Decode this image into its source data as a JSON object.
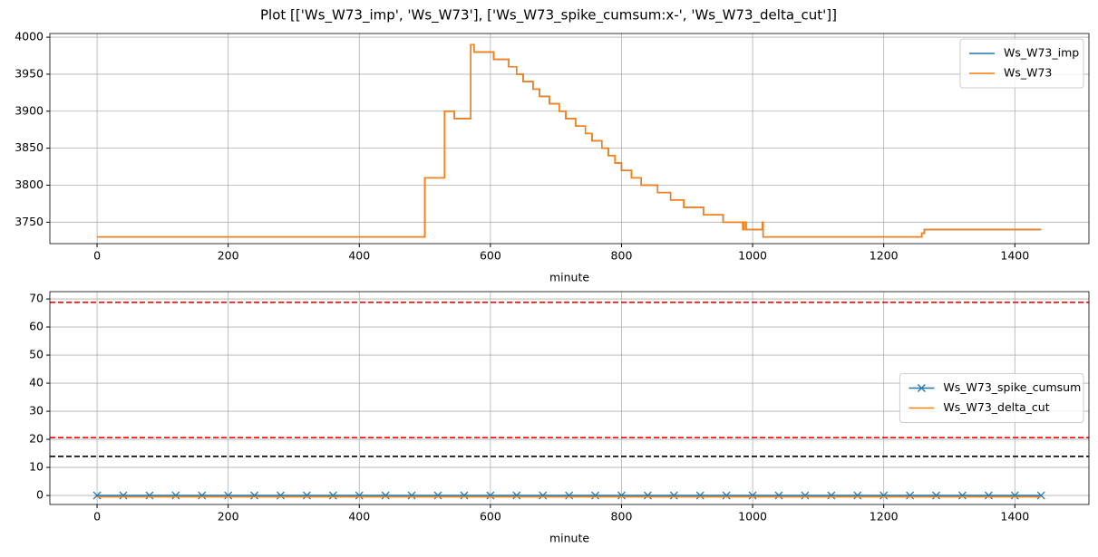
{
  "title": "Plot [['Ws_W73_imp', 'Ws_W73'], ['Ws_W73_spike_cumsum:x-', 'Ws_W73_delta_cut']]",
  "chart_data": [
    {
      "type": "line",
      "xlabel": "minute",
      "xlim": [
        -72,
        1513
      ],
      "ylim": [
        3721,
        4005
      ],
      "xticks": [
        0,
        200,
        400,
        600,
        800,
        1000,
        1200,
        1400
      ],
      "yticks": [
        3750,
        3800,
        3850,
        3900,
        3950,
        4000
      ],
      "grid": true,
      "legend": "upper right",
      "drawstyle": "steps-post",
      "series": [
        {
          "name": "Ws_W73_imp",
          "color": "#1f77b4",
          "x": [
            0,
            500,
            530,
            545,
            570,
            575,
            605,
            628,
            640,
            650,
            665,
            675,
            690,
            705,
            715,
            730,
            745,
            755,
            770,
            780,
            790,
            800,
            815,
            830,
            855,
            875,
            895,
            925,
            955,
            985,
            987,
            990,
            1015,
            1016,
            1258,
            1262,
            1440
          ],
          "values": [
            3730,
            3810,
            3900,
            3890,
            3990,
            3980,
            3970,
            3960,
            3950,
            3940,
            3930,
            3920,
            3910,
            3900,
            3890,
            3880,
            3870,
            3860,
            3850,
            3840,
            3830,
            3820,
            3810,
            3800,
            3790,
            3780,
            3770,
            3760,
            3750,
            3740,
            3750,
            3740,
            3750,
            3730,
            3735,
            3740,
            3740
          ]
        },
        {
          "name": "Ws_W73",
          "color": "#ff7f0e",
          "x": [
            0,
            500,
            530,
            545,
            570,
            575,
            605,
            628,
            640,
            650,
            665,
            675,
            690,
            705,
            715,
            730,
            745,
            755,
            770,
            780,
            790,
            800,
            815,
            830,
            855,
            875,
            895,
            925,
            955,
            985,
            987,
            990,
            1015,
            1016,
            1258,
            1262,
            1440
          ],
          "values": [
            3730,
            3810,
            3900,
            3890,
            3990,
            3980,
            3970,
            3960,
            3950,
            3940,
            3930,
            3920,
            3910,
            3900,
            3890,
            3880,
            3870,
            3860,
            3850,
            3840,
            3830,
            3820,
            3810,
            3800,
            3790,
            3780,
            3770,
            3760,
            3750,
            3740,
            3750,
            3740,
            3750,
            3730,
            3735,
            3740,
            3740
          ]
        }
      ]
    },
    {
      "type": "line",
      "xlabel": "minute",
      "xlim": [
        -72,
        1513
      ],
      "ylim": [
        -3.2,
        72.6
      ],
      "xticks": [
        0,
        200,
        400,
        600,
        800,
        1000,
        1200,
        1400
      ],
      "yticks": [
        0,
        10,
        20,
        30,
        40,
        50,
        60,
        70
      ],
      "grid": true,
      "legend": "center right",
      "hlines": [
        {
          "y": 68.8,
          "color": "#ff0000"
        },
        {
          "y": 20.6,
          "color": "#ff0000"
        },
        {
          "y": 13.9,
          "color": "#000000"
        }
      ],
      "series": [
        {
          "name": "Ws_W73_spike_cumsum",
          "color": "#1f77b4",
          "marker": "x",
          "x": [
            0,
            40,
            80,
            120,
            160,
            200,
            240,
            280,
            320,
            360,
            400,
            440,
            480,
            520,
            560,
            600,
            640,
            680,
            720,
            760,
            800,
            840,
            880,
            920,
            960,
            1000,
            1040,
            1080,
            1120,
            1160,
            1200,
            1240,
            1280,
            1320,
            1360,
            1400,
            1440
          ],
          "values": [
            0,
            0,
            0,
            0,
            0,
            0,
            0,
            0,
            0,
            0,
            0,
            0,
            0,
            0,
            0,
            0,
            0,
            0,
            0,
            0,
            0,
            0,
            0,
            0,
            0,
            0,
            0,
            0,
            0,
            0,
            0,
            0,
            0,
            0,
            0,
            0,
            0
          ]
        },
        {
          "name": "Ws_W73_delta_cut",
          "color": "#ff7f0e",
          "x": [
            0,
            1440
          ],
          "values": [
            -0.5,
            -0.5
          ]
        }
      ]
    }
  ]
}
